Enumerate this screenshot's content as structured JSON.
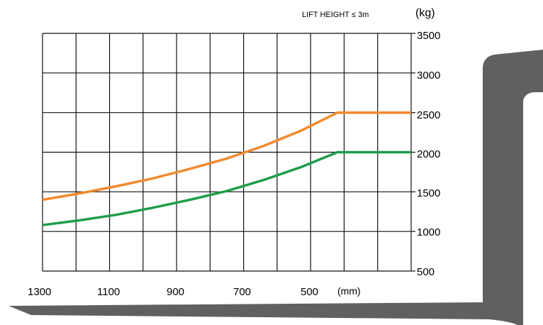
{
  "chart_data": {
    "type": "line",
    "annotation": "LIFT HEIGHT ≤ 3m",
    "y_unit": "(kg)",
    "x_unit": "(mm)",
    "x_ticks": [
      1300,
      1100,
      900,
      700,
      500
    ],
    "y_ticks": [
      3500,
      3000,
      2500,
      2000,
      1500,
      1000,
      500
    ],
    "xlim": [
      1300,
      300
    ],
    "ylim": [
      500,
      3500
    ],
    "grid": true,
    "series": [
      {
        "color": "#f28a2e",
        "x": [
          1300,
          1200,
          1100,
          1000,
          900,
          800,
          700,
          600,
          500,
          400,
          300
        ],
        "y": [
          1400,
          1480,
          1570,
          1670,
          1790,
          1920,
          2080,
          2270,
          2500,
          2500,
          2500
        ]
      },
      {
        "color": "#1e9e4a",
        "x": [
          1300,
          1200,
          1100,
          1000,
          900,
          800,
          700,
          600,
          500,
          400,
          300
        ],
        "y": [
          1080,
          1140,
          1210,
          1300,
          1400,
          1510,
          1650,
          1810,
          2000,
          2000,
          2000
        ]
      }
    ]
  },
  "decor": {
    "fork_color": "#606060"
  }
}
